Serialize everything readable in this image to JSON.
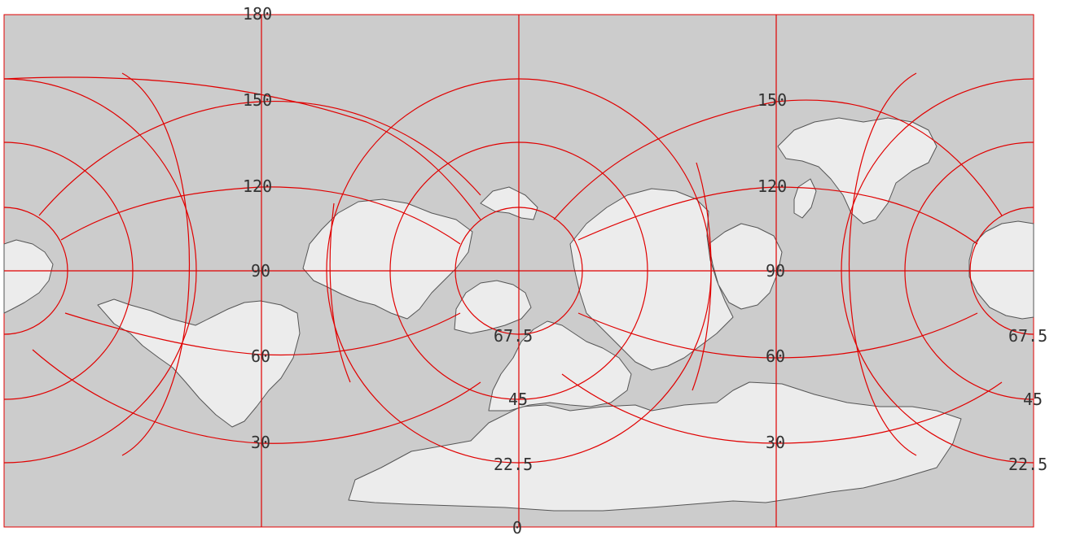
{
  "map": {
    "colors": {
      "ocean": "#cccccc",
      "land": "#ececec",
      "coast": "#555555",
      "graticule": "#e00000",
      "label": "#333333"
    },
    "labels": {
      "top": "180",
      "bottom": "0",
      "left_150": "150",
      "left_120": "120",
      "left_90": "90",
      "left_60": "60",
      "left_30": "30",
      "right_150": "150",
      "right_120": "120",
      "right_90": "90",
      "right_60": "60",
      "right_30": "30",
      "center_67_5": "67.5",
      "center_45": "45",
      "center_22_5": "22.5",
      "edge_67_5": "67.5",
      "edge_45": "45",
      "edge_22_5": "22.5"
    }
  }
}
